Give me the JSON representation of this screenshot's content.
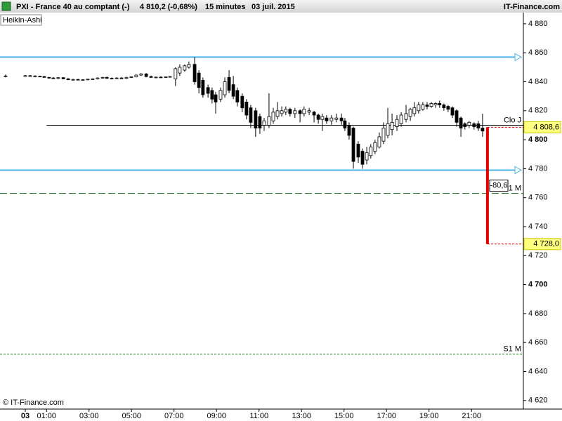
{
  "header": {
    "symbol": "PXI - France 40 au comptant (-)",
    "price": "4 810,2 (-0,68%)",
    "period": "15 minutes",
    "date": "03 juil. 2015",
    "site": "IT-Finance.com"
  },
  "chart_data": {
    "type": "candlestick",
    "style": "Heikin-Ashi",
    "copyright": "© IT-Finance.com",
    "xlim": [
      -1.19,
      23.44
    ],
    "xticks": [
      {
        "value": 0,
        "label": "03",
        "major": true
      },
      {
        "value": 1,
        "label": "01:00"
      },
      {
        "value": 3,
        "label": "03:00"
      },
      {
        "value": 5,
        "label": "05:00"
      },
      {
        "value": 7,
        "label": "07:00"
      },
      {
        "value": 9,
        "label": "09:00"
      },
      {
        "value": 11,
        "label": "11:00"
      },
      {
        "value": 13,
        "label": "13:00"
      },
      {
        "value": 15,
        "label": "15:00"
      },
      {
        "value": 17,
        "label": "17:00"
      },
      {
        "value": 19,
        "label": "19:00"
      },
      {
        "value": 21,
        "label": "21:00"
      }
    ],
    "ylim": [
      4614.1,
      4887.7
    ],
    "yticks": [
      {
        "value": 4620,
        "label": "4 620"
      },
      {
        "value": 4640,
        "label": "4 640"
      },
      {
        "value": 4660,
        "label": "4 660"
      },
      {
        "value": 4680,
        "label": "4 680"
      },
      {
        "value": 4700,
        "label": "4 700",
        "major": true
      },
      {
        "value": 4720,
        "label": "4 720"
      },
      {
        "value": 4740,
        "label": "4 740"
      },
      {
        "value": 4760,
        "label": "4 760"
      },
      {
        "value": 4780,
        "label": "4 780"
      },
      {
        "value": 4800,
        "label": "4 800",
        "major": true
      },
      {
        "value": 4820,
        "label": "4 820"
      },
      {
        "value": 4840,
        "label": "4 840"
      },
      {
        "value": 4860,
        "label": "4 860"
      },
      {
        "value": 4880,
        "label": "4 880"
      }
    ],
    "x": [
      -0.93,
      0,
      0.23,
      0.46,
      0.69,
      0.89,
      1.12,
      1.32,
      1.55,
      1.79,
      2.02,
      2.25,
      2.48,
      2.71,
      2.94,
      3.17,
      3.4,
      3.64,
      3.84,
      4.07,
      4.3,
      4.53,
      4.76,
      4.99,
      5.22,
      5.45,
      5.69,
      5.92,
      6.15,
      6.38,
      6.61,
      6.81,
      7.07,
      7.27,
      7.5,
      7.7,
      7.97,
      8.17,
      8.36,
      8.6,
      8.79,
      8.96,
      9.19,
      9.39,
      9.59,
      9.79,
      9.98,
      10.21,
      10.41,
      10.61,
      10.84,
      11.04,
      11.24,
      11.47,
      11.67,
      11.87,
      12.07,
      12.26,
      12.46,
      12.69,
      12.93,
      13.12,
      13.36,
      13.59,
      13.79,
      13.98,
      14.18,
      14.41,
      14.64,
      14.88,
      15.04,
      15.24,
      15.44,
      15.67,
      15.87,
      16.07,
      16.26,
      16.46,
      16.66,
      16.86,
      17.06,
      17.26,
      17.49,
      17.69,
      17.92,
      18.12,
      18.31,
      18.51,
      18.71,
      18.91,
      19.11,
      19.31,
      19.5,
      19.7,
      19.9,
      20.1,
      20.3,
      20.5,
      20.69,
      20.89,
      21.12,
      21.32,
      21.52
    ],
    "open": [
      4844,
      4844,
      4844.2,
      4844,
      4843.8,
      4843.6,
      4843,
      4842.6,
      4842.4,
      4842.8,
      4842,
      4841.4,
      4841.6,
      4841.2,
      4841.4,
      4841.8,
      4842,
      4842.6,
      4843,
      4842.4,
      4842.2,
      4842.6,
      4842.4,
      4843,
      4843.4,
      4844.6,
      4845.4,
      4843.6,
      4843,
      4843.2,
      4843,
      4843.4,
      4842,
      4846,
      4848,
      4850,
      4852,
      4846,
      4841,
      4836,
      4834,
      4831,
      4828,
      4831,
      4843,
      4838,
      4834,
      4830,
      4826,
      4822,
      4820,
      4816,
      4810,
      4810,
      4813,
      4816,
      4818,
      4819,
      4821,
      4818,
      4820,
      4818,
      4819,
      4819,
      4817,
      4814,
      4815,
      4813,
      4814,
      4815,
      4813,
      4810,
      4808,
      4797,
      4792,
      4786,
      4789,
      4792,
      4795,
      4799,
      4803,
      4807,
      4809,
      4811,
      4814,
      4816,
      4818,
      4820,
      4821,
      4824,
      4823,
      4824,
      4825,
      4824,
      4823,
      4822,
      4820,
      4815,
      4811,
      4810,
      4811,
      4811,
      4808
    ],
    "high": [
      4845,
      4844.6,
      4844.6,
      4844.4,
      4844.2,
      4844,
      4843.4,
      4843.2,
      4843.2,
      4843.2,
      4842.6,
      4842,
      4842,
      4841.8,
      4842,
      4842.4,
      4843,
      4843.4,
      4843.6,
      4843,
      4843,
      4843.2,
      4843.4,
      4843.8,
      4845,
      4846,
      4846,
      4844.2,
      4843.6,
      4843.8,
      4843.6,
      4844,
      4850,
      4852,
      4852,
      4854,
      4857,
      4848,
      4843,
      4838,
      4836,
      4833,
      4836,
      4843,
      4848,
      4844,
      4836,
      4832,
      4828,
      4824,
      4822,
      4818,
      4815,
      4832,
      4822,
      4826,
      4823,
      4823,
      4822,
      4822,
      4821,
      4823,
      4822,
      4820,
      4818,
      4818,
      4817,
      4817,
      4818,
      4818,
      4815,
      4812,
      4809,
      4799,
      4794,
      4795,
      4797,
      4800,
      4805,
      4812,
      4822,
      4818,
      4817,
      4819,
      4824,
      4822,
      4826,
      4826,
      4826,
      4826,
      4826,
      4826,
      4827,
      4825,
      4824,
      4823,
      4821,
      4816,
      4812,
      4813,
      4812,
      4813,
      4818
    ],
    "low": [
      4843,
      4843.6,
      4843.8,
      4843.6,
      4843.4,
      4842.8,
      4842.2,
      4842,
      4842,
      4841.8,
      4841,
      4840.8,
      4841,
      4840.8,
      4841,
      4841.4,
      4841.6,
      4842.2,
      4842,
      4841.8,
      4841.8,
      4842,
      4842,
      4842.6,
      4843,
      4844,
      4843,
      4842.6,
      4842.4,
      4842.8,
      4842.6,
      4842.8,
      4837,
      4844,
      4847,
      4849,
      4838,
      4832,
      4829,
      4829,
      4825,
      4818,
      4826,
      4829,
      4832,
      4828,
      4823,
      4819,
      4814,
      4808,
      4802,
      4804,
      4806,
      4808,
      4811,
      4814,
      4816,
      4817,
      4816,
      4815,
      4812,
      4816,
      4817,
      4812,
      4811,
      4806,
      4811,
      4810,
      4812,
      4810,
      4806,
      4800,
      4780,
      4784,
      4780,
      4783,
      4787,
      4790,
      4794,
      4797,
      4801,
      4803,
      4806,
      4809,
      4812,
      4813,
      4816,
      4818,
      4820,
      4821,
      4822,
      4822,
      4822,
      4820,
      4819,
      4815,
      4809,
      4802,
      4807,
      4808,
      4807,
      4806,
      4802
    ],
    "close": [
      4844,
      4844.2,
      4844,
      4843.8,
      4843.6,
      4843,
      4842.6,
      4842.4,
      4842.8,
      4842,
      4841.4,
      4841.6,
      4841.2,
      4841.4,
      4841.8,
      4842,
      4842.6,
      4843,
      4842.4,
      4842.2,
      4842.6,
      4842.4,
      4843,
      4843.4,
      4844.6,
      4845.4,
      4843.6,
      4843,
      4843.2,
      4843,
      4843.4,
      4843.6,
      4849,
      4850,
      4851,
      4852,
      4840,
      4836,
      4831,
      4832,
      4828,
      4826,
      4834,
      4840,
      4834,
      4830,
      4826,
      4822,
      4817,
      4812,
      4808,
      4808,
      4813,
      4816,
      4819,
      4820,
      4820,
      4821,
      4818,
      4820,
      4818,
      4821,
      4820,
      4817,
      4814,
      4816,
      4813,
      4815,
      4815,
      4813,
      4808,
      4803,
      4785,
      4788,
      4783,
      4791,
      4795,
      4798,
      4802,
      4808,
      4811,
      4812,
      4814,
      4817,
      4818,
      4821,
      4822,
      4824,
      4824,
      4823,
      4825,
      4825,
      4824,
      4822,
      4821,
      4817,
      4812,
      4808,
      4809,
      4812,
      4809,
      4808,
      4806
    ],
    "levels": [
      {
        "value": 4857,
        "color": "#4cb4e6",
        "style": "solid",
        "arrow": true
      },
      {
        "value": 4779,
        "color": "#4cb4e6",
        "style": "solid",
        "arrow": true
      },
      {
        "value": 4763,
        "color": "#1f7a1f",
        "style": "dashed",
        "label": "1 M"
      },
      {
        "value": 4652,
        "color": "#1f7a1f",
        "style": "dotted",
        "label": "S1 M"
      },
      {
        "value": 4810,
        "color": "#000000",
        "style": "thin",
        "label": "Clo J",
        "start": 1
      }
    ],
    "move": {
      "x": 21.75,
      "from": 4808.6,
      "to": 4728,
      "change": -80.6,
      "change_label": "-80,6",
      "from_label": "4 808,6",
      "to_label": "4 728,0",
      "color": "#e00000"
    }
  }
}
